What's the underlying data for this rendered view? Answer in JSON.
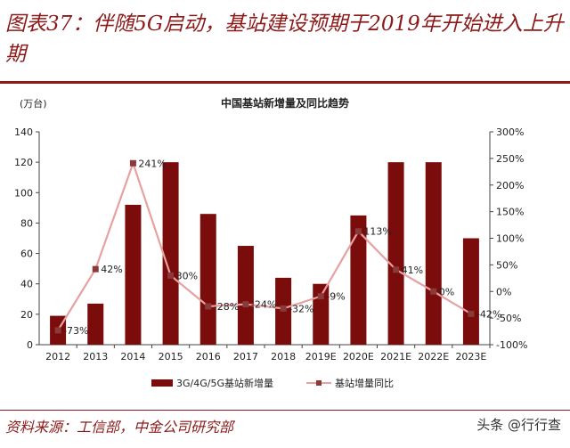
{
  "figure_title": "图表37：伴随5G启动，基站建设预期于2019年开始进入上升期",
  "source": "资料来源：工信部，中金公司研究部",
  "brand": "头条 @行行查",
  "colors": {
    "bar": "#7a0c0c",
    "line": "#e8a0a0",
    "marker": "#8b3a3a",
    "accent": "#8b1a1a"
  },
  "chart_data": {
    "type": "bar",
    "title": "中国基站新增量及同比趋势",
    "ylabel": "(万台)",
    "categories": [
      "2012",
      "2013",
      "2014",
      "2015",
      "2016",
      "2017",
      "2018",
      "2019E",
      "2020E",
      "2021E",
      "2022E",
      "2023E"
    ],
    "ylim": [
      0,
      140
    ],
    "y_ticks": [
      "0",
      "20",
      "40",
      "60",
      "80",
      "100",
      "120",
      "140"
    ],
    "y2lim": [
      -100,
      300
    ],
    "y2_ticks": [
      "-100%",
      "-50%",
      "0%",
      "50%",
      "100%",
      "150%",
      "200%",
      "250%",
      "300%"
    ],
    "legend_position": "bottom",
    "grid": false,
    "series": [
      {
        "name": "3G/4G/5G基站新增量",
        "type": "bar",
        "axis": "left",
        "values": [
          19,
          27,
          92,
          120,
          86,
          65,
          44,
          40,
          85,
          120,
          120,
          70
        ]
      },
      {
        "name": "基站增量同比",
        "type": "line",
        "axis": "right",
        "values": [
          -73,
          42,
          241,
          30,
          -28,
          -24,
          -32,
          -9,
          113,
          41,
          0,
          -42
        ],
        "labels": [
          "-73%",
          "42%",
          "241%",
          "30%",
          "-28%",
          "-24%",
          "-32%",
          "-9%",
          "113%",
          "41%",
          "0%",
          "-42%"
        ]
      }
    ]
  }
}
